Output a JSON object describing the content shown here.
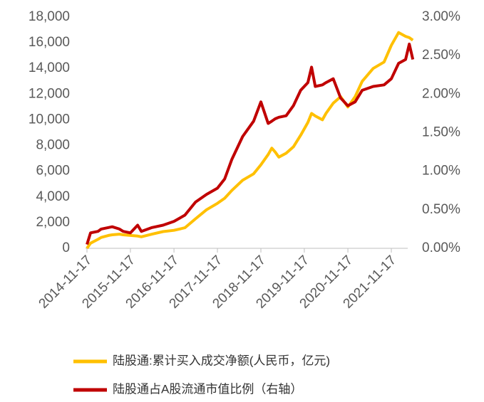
{
  "chart_data": {
    "type": "line",
    "x": [
      "2014-11-17",
      "2014-12-17",
      "2015-02-17",
      "2015-03-17",
      "2015-05-17",
      "2015-06-17",
      "2015-08-17",
      "2015-09-17",
      "2015-11-17",
      "2016-01-17",
      "2016-02-17",
      "2016-05-17",
      "2016-08-17",
      "2016-11-17",
      "2017-02-17",
      "2017-05-17",
      "2017-08-17",
      "2017-11-17",
      "2018-01-17",
      "2018-03-17",
      "2018-06-17",
      "2018-09-17",
      "2018-11-17",
      "2019-01-17",
      "2019-02-17",
      "2019-03-17",
      "2019-04-17",
      "2019-06-17",
      "2019-08-17",
      "2019-10-17",
      "2019-12-17",
      "2020-01-17",
      "2020-02-17",
      "2020-04-17",
      "2020-05-17",
      "2020-07-17",
      "2020-09-17",
      "2020-11-17",
      "2021-01-17",
      "2021-03-17",
      "2021-06-17",
      "2021-09-17",
      "2021-11-17",
      "2022-01-17",
      "2022-03-17",
      "2022-04-17",
      "2022-05-17"
    ],
    "series": [
      {
        "name": "陆股通:累计买入成交净额(人民币，亿元)",
        "color": "#ffc000",
        "values": [
          0,
          400,
          700,
          850,
          1000,
          1050,
          1100,
          1050,
          1000,
          950,
          900,
          1100,
          1300,
          1400,
          1600,
          2300,
          3000,
          3500,
          3900,
          4500,
          5300,
          5800,
          6500,
          7300,
          7800,
          7500,
          7100,
          7400,
          7900,
          8800,
          9800,
          10500,
          10300,
          10000,
          10500,
          11300,
          11800,
          11000,
          11800,
          13000,
          14000,
          14500,
          15800,
          16800,
          16500,
          16400,
          16200
        ]
      },
      {
        "name": "陆股通占A股流通市值比例（右轴）",
        "color": "#c00000",
        "axis": "y2",
        "values": [
          0.05,
          0.2,
          0.22,
          0.25,
          0.27,
          0.28,
          0.25,
          0.22,
          0.2,
          0.3,
          0.22,
          0.27,
          0.3,
          0.35,
          0.43,
          0.6,
          0.7,
          0.78,
          0.9,
          1.15,
          1.45,
          1.65,
          1.9,
          1.62,
          1.65,
          1.68,
          1.7,
          1.72,
          1.85,
          2.05,
          2.15,
          2.35,
          2.1,
          2.12,
          2.15,
          2.2,
          1.95,
          1.85,
          1.9,
          2.05,
          2.1,
          2.12,
          2.2,
          2.4,
          2.45,
          2.65,
          2.45
        ]
      }
    ],
    "ylim": [
      0,
      18000
    ],
    "yticks": [
      0,
      {
        "value": 2000,
        "label": "2,000"
      },
      {
        "value": 4000,
        "label": "4,000"
      },
      {
        "value": 6000,
        "label": "6,000"
      },
      {
        "value": 8000,
        "label": "8,000"
      },
      {
        "value": 10000,
        "label": "10,000"
      },
      {
        "value": 12000,
        "label": "12,000"
      },
      {
        "value": 14000,
        "label": "14,000"
      },
      {
        "value": 16000,
        "label": "16,000"
      },
      {
        "value": 18000,
        "label": "18,000"
      }
    ],
    "y2lim": [
      0,
      3
    ],
    "y2ticks": [
      {
        "value": 0,
        "label": "0.00%"
      },
      {
        "value": 0.5,
        "label": "0.50%"
      },
      {
        "value": 1,
        "label": "1.00%"
      },
      {
        "value": 1.5,
        "label": "1.50%"
      },
      {
        "value": 2,
        "label": "2.00%"
      },
      {
        "value": 2.5,
        "label": "2.50%"
      },
      {
        "value": 3,
        "label": "3.00%"
      }
    ],
    "xticks": [
      "2014-11-17",
      "2015-11-17",
      "2016-11-17",
      "2017-11-17",
      "2018-11-17",
      "2019-11-17",
      "2020-11-17",
      "2021-11-17"
    ],
    "legend": "bottom"
  }
}
